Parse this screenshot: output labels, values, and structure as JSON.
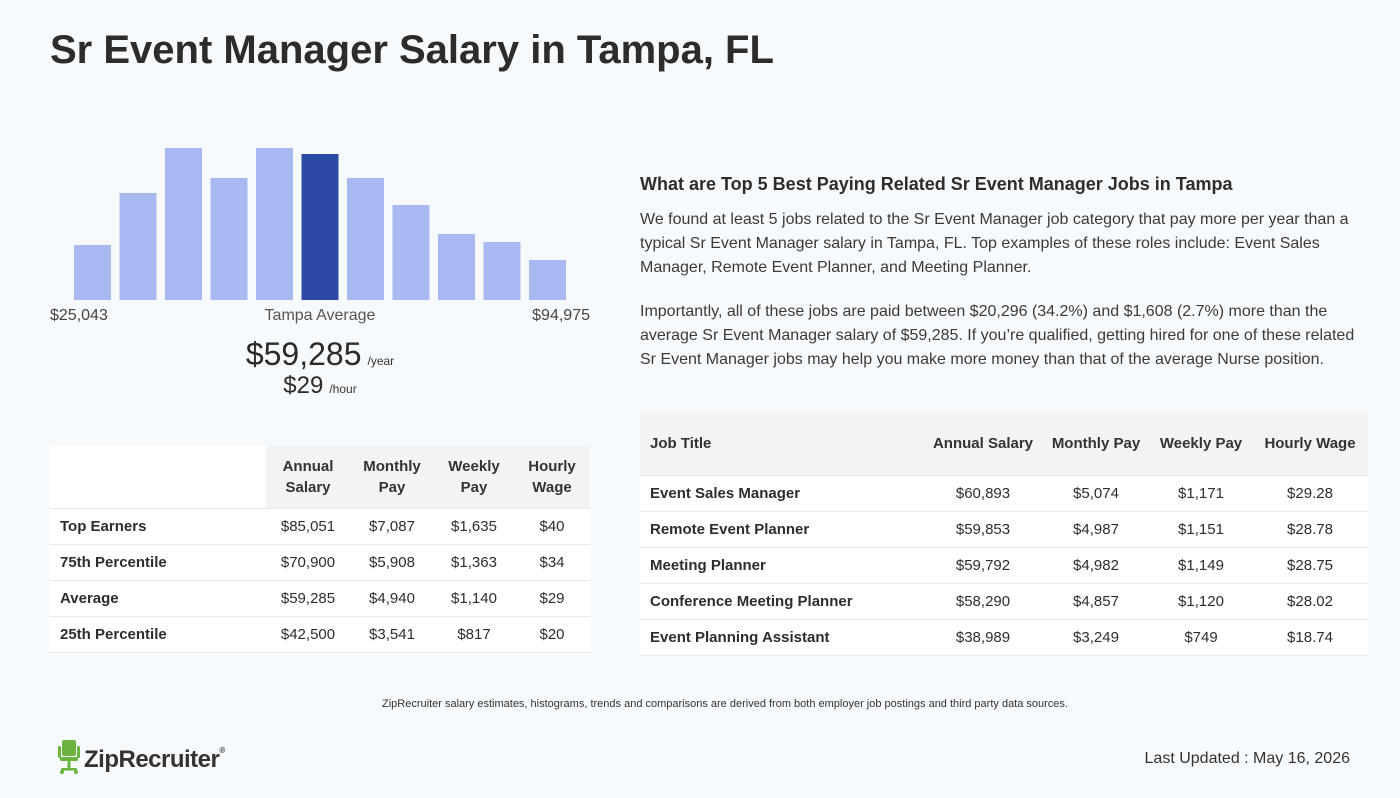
{
  "page": {
    "title": "Sr Event Manager Salary in Tampa, FL"
  },
  "chart_data": {
    "type": "bar",
    "title": "",
    "xlabel": "",
    "ylabel": "",
    "range_min_label": "$25,043",
    "range_max_label": "$94,975",
    "average_label": "Tampa Average",
    "highlight_index": 5,
    "values": [
      55,
      107,
      152,
      122,
      152,
      146,
      122,
      95,
      66,
      58,
      40
    ],
    "ylim": [
      0,
      152
    ],
    "colors": {
      "bar": "#a8b8f0",
      "highlight": "#2b4aa5"
    }
  },
  "summary": {
    "yearly_value": "$59,285",
    "yearly_unit": "/year",
    "hourly_value": "$29",
    "hourly_unit": "/hour"
  },
  "percentile_table": {
    "headers": [
      "Annual Salary",
      "Monthly Pay",
      "Weekly Pay",
      "Hourly Wage"
    ],
    "rows": [
      {
        "label": "Top Earners",
        "annual": "$85,051",
        "monthly": "$7,087",
        "weekly": "$1,635",
        "hourly": "$40"
      },
      {
        "label": "75th Percentile",
        "annual": "$70,900",
        "monthly": "$5,908",
        "weekly": "$1,363",
        "hourly": "$34"
      },
      {
        "label": "Average",
        "annual": "$59,285",
        "monthly": "$4,940",
        "weekly": "$1,140",
        "hourly": "$29"
      },
      {
        "label": "25th Percentile",
        "annual": "$42,500",
        "monthly": "$3,541",
        "weekly": "$817",
        "hourly": "$20"
      }
    ]
  },
  "related": {
    "title": "What are Top 5 Best Paying Related Sr Event Manager Jobs in Tampa",
    "paragraph1": "We found at least 5 jobs related to the Sr Event Manager job category that pay more per year than a typical Sr Event Manager salary in Tampa, FL. Top examples of these roles include: Event Sales Manager, Remote Event Planner, and Meeting Planner.",
    "paragraph2": "Importantly, all of these jobs are paid between $20,296 (34.2%) and $1,608 (2.7%) more than the average Sr Event Manager salary of $59,285. If you’re qualified, getting hired for one of these related Sr Event Manager jobs may help you make more money than that of the average Nurse position."
  },
  "jobs_table": {
    "headers": [
      "Job Title",
      "Annual Salary",
      "Monthly Pay",
      "Weekly Pay",
      "Hourly Wage"
    ],
    "rows": [
      {
        "title": "Event Sales Manager",
        "annual": "$60,893",
        "monthly": "$5,074",
        "weekly": "$1,171",
        "hourly": "$29.28"
      },
      {
        "title": "Remote Event Planner",
        "annual": "$59,853",
        "monthly": "$4,987",
        "weekly": "$1,151",
        "hourly": "$28.78"
      },
      {
        "title": "Meeting Planner",
        "annual": "$59,792",
        "monthly": "$4,982",
        "weekly": "$1,149",
        "hourly": "$28.75"
      },
      {
        "title": "Conference Meeting Planner",
        "annual": "$58,290",
        "monthly": "$4,857",
        "weekly": "$1,120",
        "hourly": "$28.02"
      },
      {
        "title": "Event Planning Assistant",
        "annual": "$38,989",
        "monthly": "$3,249",
        "weekly": "$749",
        "hourly": "$18.74"
      }
    ]
  },
  "footer": {
    "footnote": "ZipRecruiter salary estimates, histograms, trends and comparisons are derived from both employer job postings and third party data sources.",
    "logo_text": "ZipRecruiter",
    "logo_reg": "®",
    "updated": "Last Updated : May 16, 2026"
  },
  "icons": {
    "logo": "chair-logo-icon"
  },
  "colors": {
    "logo_green": "#6bb33f"
  }
}
